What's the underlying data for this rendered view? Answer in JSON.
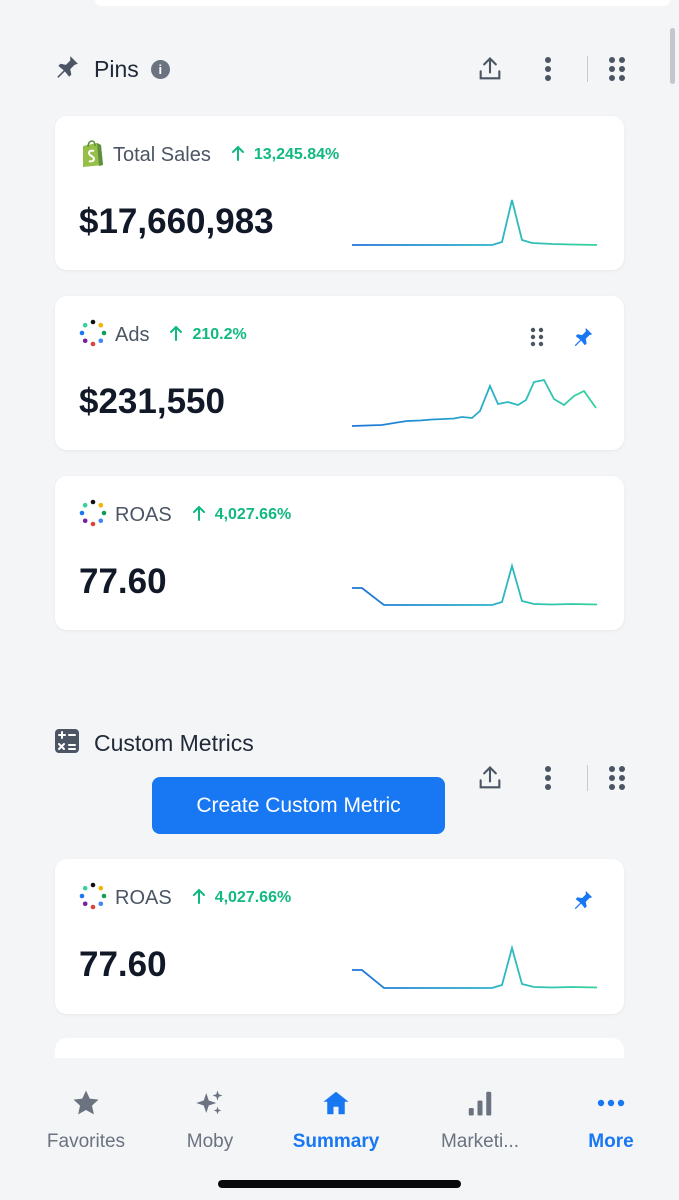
{
  "pins": {
    "title": "Pins",
    "info": "i",
    "cards": [
      {
        "label": "Total Sales",
        "change": "13,245.84%",
        "value": "$17,660,983",
        "icon": "shopify-icon"
      },
      {
        "label": "Ads",
        "change": "210.2%",
        "value": "$231,550",
        "icon": "ads-dots-icon"
      },
      {
        "label": "ROAS",
        "change": "4,027.66%",
        "value": "77.60",
        "icon": "roas-dots-icon"
      }
    ]
  },
  "custom_metrics": {
    "title": "Custom Metrics",
    "create_button": "Create Custom Metric",
    "cards": [
      {
        "label": "ROAS",
        "change": "4,027.66%",
        "value": "77.60",
        "icon": "roas-dots-icon"
      }
    ]
  },
  "tabbar": {
    "tabs": [
      {
        "label": "Favorites",
        "icon": "star-icon"
      },
      {
        "label": "Moby",
        "icon": "sparkles-icon"
      },
      {
        "label": "Summary",
        "icon": "home-icon",
        "active": true
      },
      {
        "label": "Marketi...",
        "icon": "bar-chart-icon"
      },
      {
        "label": "More",
        "icon": "more-dots-icon"
      }
    ]
  },
  "colors": {
    "accent": "#1877f2",
    "positive": "#10b981",
    "spark_start": "#1e73d8",
    "spark_end": "#34d399"
  }
}
